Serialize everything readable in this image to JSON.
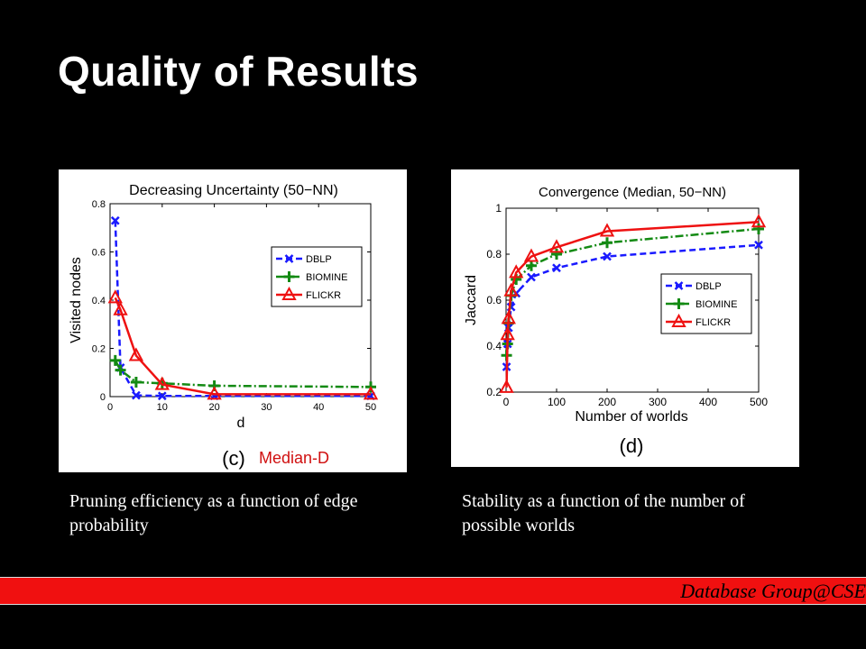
{
  "slide": {
    "title": "Quality of Results",
    "caption_left": "Pruning efficiency as a function of edge probability",
    "caption_right": "Stability as a function of the number of possible worlds",
    "footer": "Database Group@CSE",
    "footer_color": "#f01010"
  },
  "chart_data": [
    {
      "type": "line",
      "title": "Decreasing Uncertainty (50−NN)",
      "xlabel": "d",
      "ylabel": "Visited nodes",
      "xlim": [
        0,
        50
      ],
      "ylim": [
        0,
        0.8
      ],
      "xticks": [
        "0",
        "10",
        "20",
        "30",
        "40",
        "50"
      ],
      "yticks": [
        "0",
        "0.2",
        "0.4",
        "0.6",
        "0.8"
      ],
      "panel_label": "(c)",
      "panel_note": "Median-D",
      "legend_position": "center-right",
      "grid": false,
      "series": [
        {
          "name": "DBLP",
          "color": "#1a1aff",
          "style": "dashed",
          "marker": "x",
          "x": [
            1,
            2,
            5,
            10,
            20,
            50
          ],
          "y": [
            0.73,
            0.12,
            0.005,
            0.003,
            0.003,
            0.003
          ]
        },
        {
          "name": "BIOMINE",
          "color": "#138a13",
          "style": "dashdot",
          "marker": "plus",
          "x": [
            1,
            2,
            5,
            10,
            20,
            50
          ],
          "y": [
            0.15,
            0.11,
            0.06,
            0.055,
            0.045,
            0.04
          ]
        },
        {
          "name": "FLICKR",
          "color": "#ee1111",
          "style": "solid",
          "marker": "triangle",
          "x": [
            1,
            2,
            5,
            10,
            20,
            50
          ],
          "y": [
            0.41,
            0.36,
            0.17,
            0.05,
            0.01,
            0.01
          ]
        }
      ]
    },
    {
      "type": "line",
      "title": "Convergence (Median, 50−NN)",
      "xlabel": "Number of worlds",
      "ylabel": "Jaccard",
      "xlim": [
        0,
        500
      ],
      "ylim": [
        0.2,
        1
      ],
      "xticks": [
        "0",
        "100",
        "200",
        "300",
        "400",
        "500"
      ],
      "yticks": [
        "0.2",
        "0.4",
        "0.6",
        "0.8",
        "1"
      ],
      "panel_label": "(d)",
      "legend_position": "bottom-right",
      "grid": false,
      "series": [
        {
          "name": "DBLP",
          "color": "#1a1aff",
          "style": "dashed",
          "marker": "x",
          "x": [
            1,
            3,
            5,
            10,
            20,
            50,
            100,
            200,
            500
          ],
          "y": [
            0.31,
            0.41,
            0.48,
            0.57,
            0.63,
            0.7,
            0.74,
            0.79,
            0.84
          ]
        },
        {
          "name": "BIOMINE",
          "color": "#138a13",
          "style": "dashdot",
          "marker": "plus",
          "x": [
            1,
            3,
            5,
            10,
            20,
            50,
            100,
            200,
            500
          ],
          "y": [
            0.36,
            0.41,
            0.5,
            0.62,
            0.69,
            0.75,
            0.8,
            0.85,
            0.91
          ]
        },
        {
          "name": "FLICKR",
          "color": "#ee1111",
          "style": "solid",
          "marker": "triangle",
          "x": [
            1,
            3,
            5,
            10,
            20,
            50,
            100,
            200,
            500
          ],
          "y": [
            0.22,
            0.45,
            0.52,
            0.64,
            0.72,
            0.79,
            0.83,
            0.9,
            0.94
          ]
        }
      ]
    }
  ]
}
